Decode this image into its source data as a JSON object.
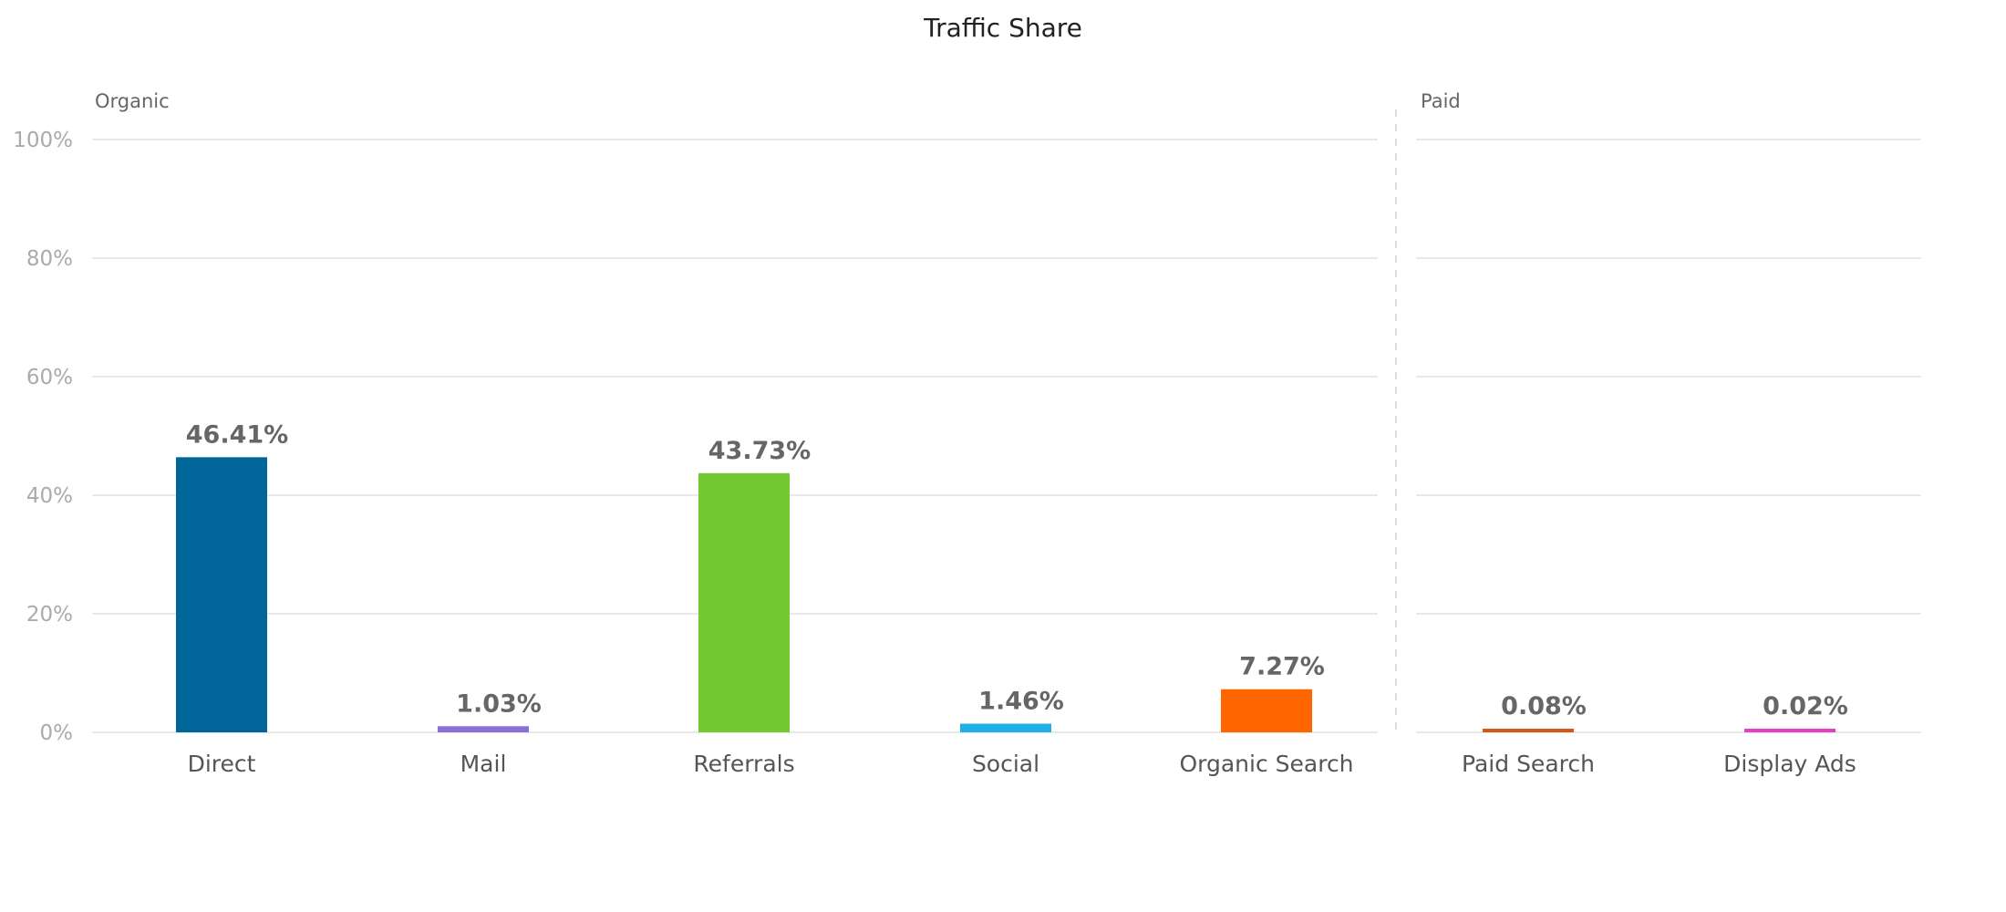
{
  "chart_data": {
    "type": "bar",
    "title": "Traffic Share",
    "groups": [
      {
        "name": "Organic",
        "categories": [
          "Direct",
          "Mail",
          "Referrals",
          "Social",
          "Organic Search"
        ]
      },
      {
        "name": "Paid",
        "categories": [
          "Paid Search",
          "Display Ads"
        ]
      }
    ],
    "categories": [
      "Direct",
      "Mail",
      "Referrals",
      "Social",
      "Organic Search",
      "Paid Search",
      "Display Ads"
    ],
    "values": [
      46.41,
      1.03,
      43.73,
      1.46,
      7.27,
      0.08,
      0.02
    ],
    "data_labels": [
      "46.41%",
      "1.03%",
      "43.73%",
      "1.46%",
      "7.27%",
      "0.08%",
      "0.02%"
    ],
    "colors": [
      "#006699",
      "#8a6fd8",
      "#72c932",
      "#1fb0e8",
      "#ff6600",
      "#d4581a",
      "#e63fc6"
    ],
    "ylim": [
      0,
      100
    ],
    "yticks": [
      0,
      20,
      40,
      60,
      80,
      100
    ],
    "ytick_labels": [
      "0%",
      "20%",
      "40%",
      "60%",
      "80%",
      "100%"
    ],
    "grid": true,
    "xlabel": "",
    "ylabel": ""
  }
}
